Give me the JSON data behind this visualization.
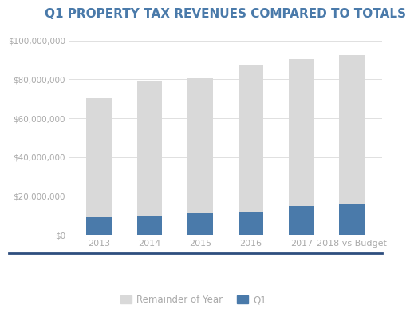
{
  "categories": [
    "2013",
    "2014",
    "2015",
    "2016",
    "2017",
    "2018 vs Budget"
  ],
  "q1_values": [
    9000000,
    10000000,
    11000000,
    12000000,
    15000000,
    15500000
  ],
  "total_values": [
    70500000,
    79500000,
    80500000,
    87000000,
    90500000,
    92500000
  ],
  "remainder_color": "#d9d9d9",
  "q1_color": "#4a7aaa",
  "title": "Q1 PROPERTY TAX REVENUES COMPARED TO TOTALS",
  "legend_labels": [
    "Remainder of Year",
    "Q1"
  ],
  "ylim": [
    0,
    105000000
  ],
  "yticks": [
    0,
    20000000,
    40000000,
    60000000,
    80000000,
    100000000
  ],
  "background_color": "#ffffff",
  "title_color": "#4a7aaa",
  "title_fontsize": 11,
  "tick_label_color": "#aaaaaa",
  "grid_color": "#e0e0e0",
  "bar_width": 0.5,
  "separator_line_color": "#2e4e7e",
  "legend_fontsize": 8.5
}
